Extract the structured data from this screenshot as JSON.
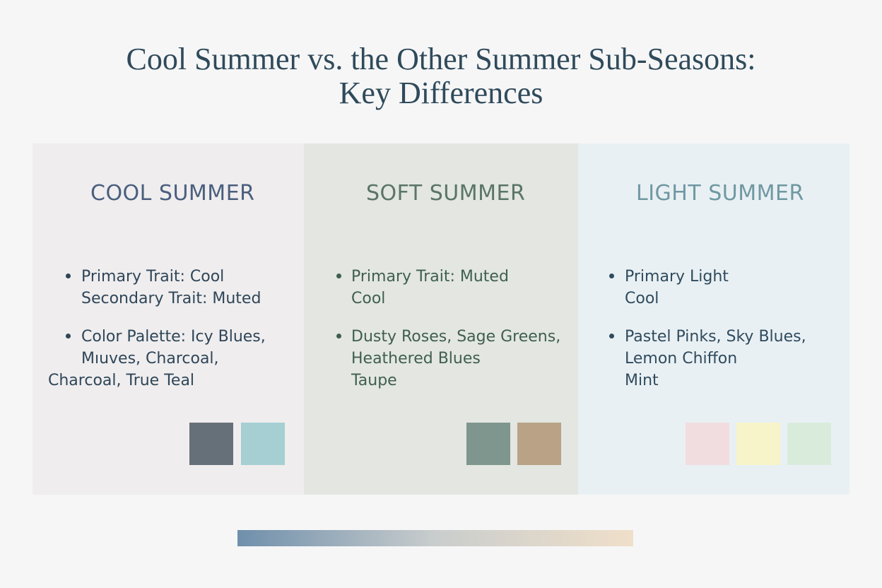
{
  "title": {
    "line1": "Cool Summer vs. the Other Summer Sub-Seasons:",
    "line2": "Key Differences"
  },
  "colors": {
    "page_background": "#f6f6f7",
    "title": "#2f4a5a",
    "cool_panel_bg": "#efedee",
    "soft_panel_bg": "#e3e6e1",
    "light_panel_bg": "#e9f0f3",
    "cool_heading": "#4a5f7e",
    "soft_heading": "#5a7566",
    "light_heading": "#6f98a2",
    "cool_text": "#2f4658",
    "soft_text": "#3f5f4f",
    "light_text": "#2f4b5e",
    "gradient_start": "#6f8fab",
    "gradient_end": "#f0dfc9"
  },
  "panels": [
    {
      "heading": "COOL SUMMER",
      "bullets": [
        {
          "lines": [
            "Primary Trait: Cool",
            "Secondary Trait: Muted"
          ]
        },
        {
          "lines": [
            "Color Palette: Icy Blues,",
            "Mıuves, Charcoal,",
            "Charcoal, True Teal"
          ]
        }
      ],
      "swatches": [
        "#667079",
        "#a5cfd3"
      ]
    },
    {
      "heading": "SOFT SUMMER",
      "bullets": [
        {
          "lines": [
            "Primary Trait: Muted",
            "Cool"
          ]
        },
        {
          "lines": [
            "Dusty Roses, Sage Greens,",
            "Heathered Blues",
            "Taupe"
          ]
        }
      ],
      "swatches": [
        "#7f968e",
        "#b9a286"
      ]
    },
    {
      "heading": "LIGHT SUMMER",
      "bullets": [
        {
          "lines": [
            "Primary Light",
            "Cool"
          ]
        },
        {
          "lines": [
            "Pastel Pinks, Sky Blues,",
            "Lemon Chiffon",
            "Mint"
          ]
        }
      ],
      "swatches": [
        "#f1dde0",
        "#f6f4c8",
        "#d9ecdc"
      ]
    }
  ]
}
